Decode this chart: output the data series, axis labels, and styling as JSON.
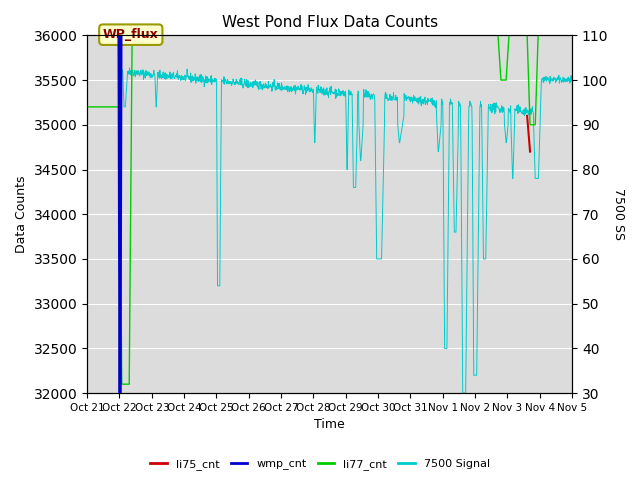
{
  "title": "West Pond Flux Data Counts",
  "xlabel": "Time",
  "ylabel_left": "Data Counts",
  "ylabel_right": "7500 SS",
  "ylim_left": [
    32000,
    36000
  ],
  "ylim_right": [
    30,
    110
  ],
  "background_color": "#dcdcdc",
  "annotation_text": "WP_flux",
  "xtick_labels": [
    "Oct 21",
    "Oct 22",
    "Oct 23",
    "Oct 24",
    "Oct 25",
    "Oct 26",
    "Oct 27",
    "Oct 28",
    "Oct 29",
    "Oct 30",
    "Oct 31",
    "Nov 1",
    "Nov 2",
    "Nov 3",
    "Nov 4",
    "Nov 5"
  ],
  "colors": {
    "li75_cnt": "#cc0000",
    "wmp_cnt": "#0000cc",
    "li77_cnt": "#00cc00",
    "signal_7500": "#00cccc"
  },
  "legend_labels": [
    "li75_cnt",
    "wmp_cnt",
    "li77_cnt",
    "7500 Signal"
  ]
}
